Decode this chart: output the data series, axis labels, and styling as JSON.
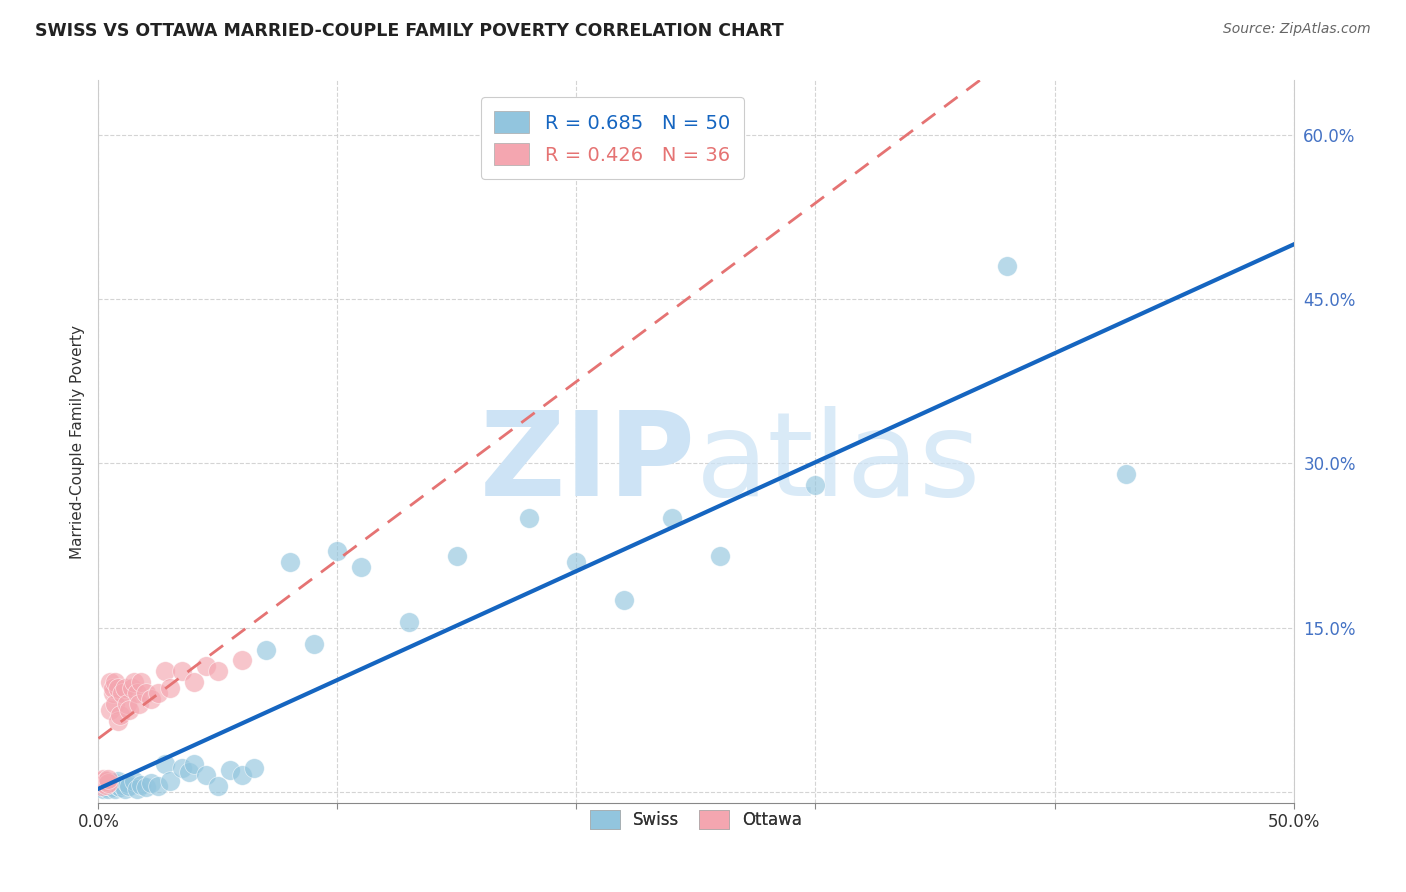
{
  "title": "SWISS VS OTTAWA MARRIED-COUPLE FAMILY POVERTY CORRELATION CHART",
  "source_text": "Source: ZipAtlas.com",
  "ylabel": "Married-Couple Family Poverty",
  "xlim": [
    0.0,
    0.5
  ],
  "ylim": [
    -0.01,
    0.65
  ],
  "xticks": [
    0.0,
    0.1,
    0.2,
    0.3,
    0.4,
    0.5
  ],
  "xtick_labels": [
    "0.0%",
    "",
    "",
    "",
    "",
    "50.0%"
  ],
  "yticks": [
    0.0,
    0.15,
    0.3,
    0.45,
    0.6
  ],
  "ytick_labels": [
    "",
    "15.0%",
    "30.0%",
    "45.0%",
    "60.0%"
  ],
  "swiss_R": 0.685,
  "swiss_N": 50,
  "ottawa_R": 0.426,
  "ottawa_N": 36,
  "swiss_color": "#92c5de",
  "ottawa_color": "#f4a6b0",
  "swiss_line_color": "#1565c0",
  "ottawa_line_color": "#e57373",
  "watermark_zip": "ZIP",
  "watermark_atlas": "atlas",
  "swiss_x": [
    0.001,
    0.002,
    0.002,
    0.003,
    0.003,
    0.004,
    0.004,
    0.005,
    0.005,
    0.006,
    0.007,
    0.007,
    0.008,
    0.008,
    0.009,
    0.01,
    0.011,
    0.012,
    0.013,
    0.015,
    0.016,
    0.018,
    0.02,
    0.022,
    0.025,
    0.028,
    0.03,
    0.035,
    0.038,
    0.04,
    0.045,
    0.05,
    0.055,
    0.06,
    0.065,
    0.07,
    0.08,
    0.09,
    0.1,
    0.11,
    0.13,
    0.15,
    0.18,
    0.2,
    0.22,
    0.24,
    0.26,
    0.3,
    0.38,
    0.43
  ],
  "swiss_y": [
    0.005,
    0.003,
    0.008,
    0.004,
    0.01,
    0.003,
    0.006,
    0.005,
    0.009,
    0.004,
    0.003,
    0.008,
    0.005,
    0.01,
    0.004,
    0.006,
    0.003,
    0.008,
    0.005,
    0.01,
    0.003,
    0.006,
    0.004,
    0.008,
    0.005,
    0.025,
    0.01,
    0.022,
    0.018,
    0.025,
    0.015,
    0.005,
    0.02,
    0.015,
    0.022,
    0.13,
    0.21,
    0.135,
    0.22,
    0.205,
    0.155,
    0.215,
    0.25,
    0.21,
    0.175,
    0.25,
    0.215,
    0.28,
    0.48,
    0.29
  ],
  "ottawa_x": [
    0.001,
    0.001,
    0.002,
    0.002,
    0.003,
    0.003,
    0.004,
    0.004,
    0.005,
    0.005,
    0.006,
    0.006,
    0.007,
    0.007,
    0.008,
    0.008,
    0.009,
    0.01,
    0.011,
    0.012,
    0.013,
    0.014,
    0.015,
    0.016,
    0.017,
    0.018,
    0.02,
    0.022,
    0.025,
    0.028,
    0.03,
    0.035,
    0.04,
    0.045,
    0.05,
    0.06
  ],
  "ottawa_y": [
    0.005,
    0.01,
    0.008,
    0.012,
    0.006,
    0.01,
    0.008,
    0.012,
    0.075,
    0.1,
    0.09,
    0.095,
    0.08,
    0.1,
    0.095,
    0.065,
    0.07,
    0.09,
    0.095,
    0.08,
    0.075,
    0.095,
    0.1,
    0.09,
    0.08,
    0.1,
    0.09,
    0.085,
    0.09,
    0.11,
    0.095,
    0.11,
    0.1,
    0.115,
    0.11,
    0.12
  ]
}
